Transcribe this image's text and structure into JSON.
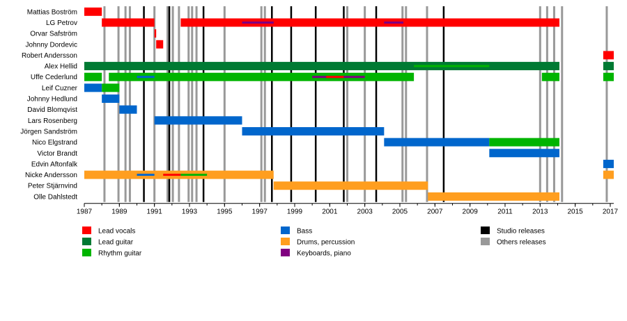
{
  "chart_data": {
    "type": "timeline",
    "x_range": [
      1987,
      2017.2
    ],
    "x_ticks": [
      1987,
      1989,
      1991,
      1993,
      1995,
      1997,
      1999,
      2001,
      2003,
      2005,
      2007,
      2009,
      2011,
      2013,
      2015,
      2017
    ],
    "x_tick_labels": [
      "1987",
      "1989",
      "1991",
      "1993",
      "1995",
      "1997",
      "1999",
      "2001",
      "2003",
      "2005",
      "2007",
      "2009",
      "2011",
      "2013",
      "2015",
      "2017"
    ],
    "colors": {
      "lead_vocals": "#ff0000",
      "lead_guitar": "#007a33",
      "rhythm_guitar": "#00b400",
      "bass": "#0066cc",
      "drums": "#ff9e1f",
      "keyboards": "#800080",
      "studio": "#000000",
      "other": "#999999"
    },
    "members": [
      "Mattias Boström",
      "LG Petrov",
      "Orvar Safström",
      "Johnny Dordevic",
      "Robert Andersson",
      "Alex Hellid",
      "Uffe Cederlund",
      "Leif Cuzner",
      "Johnny Hedlund",
      "David Blomqvist",
      "Lars Rosenberg",
      "Jörgen Sandström",
      "Nico Elgstrand",
      "Victor Brandt",
      "Edvin Aftonfalk",
      "Nicke Andersson",
      "Peter Stjärnvind",
      "Olle Dahlstedt"
    ],
    "bars": [
      {
        "member": 0,
        "role": "lead_vocals",
        "start": 1987.0,
        "end": 1988.0
      },
      {
        "member": 1,
        "role": "lead_vocals",
        "start": 1988.0,
        "end": 1991.0
      },
      {
        "member": 1,
        "role": "lead_vocals",
        "start": 1992.5,
        "end": 2014.1
      },
      {
        "member": 2,
        "role": "lead_vocals",
        "start": 1991.0,
        "end": 1991.1
      },
      {
        "member": 3,
        "role": "lead_vocals",
        "start": 1991.1,
        "end": 1991.5
      },
      {
        "member": 4,
        "role": "lead_vocals",
        "start": 2016.6,
        "end": 2017.2
      },
      {
        "member": 5,
        "role": "lead_guitar",
        "start": 1987.0,
        "end": 2014.1
      },
      {
        "member": 5,
        "role": "lead_guitar",
        "start": 2016.6,
        "end": 2017.2
      },
      {
        "member": 6,
        "role": "rhythm_guitar",
        "start": 1987.0,
        "end": 1988.0
      },
      {
        "member": 6,
        "role": "rhythm_guitar",
        "start": 1988.4,
        "end": 2005.8
      },
      {
        "member": 6,
        "role": "rhythm_guitar",
        "start": 2013.1,
        "end": 2014.1
      },
      {
        "member": 6,
        "role": "rhythm_guitar",
        "start": 2016.6,
        "end": 2017.2
      },
      {
        "member": 7,
        "role": "bass",
        "start": 1987.0,
        "end": 1988.0
      },
      {
        "member": 7,
        "role": "rhythm_guitar",
        "start": 1988.0,
        "end": 1989.0
      },
      {
        "member": 8,
        "role": "bass",
        "start": 1988.0,
        "end": 1989.0
      },
      {
        "member": 9,
        "role": "bass",
        "start": 1989.0,
        "end": 1990.0
      },
      {
        "member": 10,
        "role": "bass",
        "start": 1991.0,
        "end": 1996.0
      },
      {
        "member": 11,
        "role": "bass",
        "start": 1996.0,
        "end": 2004.1
      },
      {
        "member": 12,
        "role": "bass",
        "start": 2004.1,
        "end": 2010.1
      },
      {
        "member": 12,
        "role": "rhythm_guitar",
        "start": 2010.1,
        "end": 2014.1
      },
      {
        "member": 13,
        "role": "bass",
        "start": 2010.1,
        "end": 2014.1
      },
      {
        "member": 14,
        "role": "bass",
        "start": 2016.6,
        "end": 2017.2
      },
      {
        "member": 15,
        "role": "drums",
        "start": 1987.0,
        "end": 1997.8
      },
      {
        "member": 15,
        "role": "drums",
        "start": 2016.6,
        "end": 2017.2
      },
      {
        "member": 16,
        "role": "drums",
        "start": 1997.8,
        "end": 2006.6
      },
      {
        "member": 17,
        "role": "drums",
        "start": 2006.6,
        "end": 2014.1
      }
    ],
    "sub_bars": [
      {
        "member": 1,
        "role": "keyboards",
        "start": 1996.0,
        "end": 1997.8
      },
      {
        "member": 1,
        "role": "keyboards",
        "start": 2004.1,
        "end": 2005.2
      },
      {
        "member": 5,
        "role": "rhythm_guitar",
        "start": 2005.8,
        "end": 2010.1
      },
      {
        "member": 6,
        "role": "bass",
        "start": 1990.0,
        "end": 1991.0
      },
      {
        "member": 6,
        "role": "keyboards",
        "start": 2000.0,
        "end": 2003.0
      },
      {
        "member": 6,
        "role": "lead_vocals",
        "start": 2000.8,
        "end": 2001.8
      },
      {
        "member": 15,
        "role": "bass",
        "start": 1990.0,
        "end": 1991.0
      },
      {
        "member": 15,
        "role": "lead_vocals",
        "start": 1991.5,
        "end": 1992.5
      },
      {
        "member": 15,
        "role": "rhythm_guitar",
        "start": 1992.5,
        "end": 1994.0
      }
    ],
    "studio_releases": [
      1990.4,
      1991.85,
      1993.8,
      1997.7,
      1998.8,
      2000.2,
      2001.8,
      2003.65,
      2007.5
    ],
    "other_releases": [
      1988.15,
      1988.95,
      1989.35,
      1989.6,
      1991.0,
      1991.75,
      1992.05,
      1992.4,
      1992.95,
      1993.15,
      1993.4,
      1995.0,
      1997.1,
      1997.3,
      2002.0,
      2003.0,
      2005.15,
      2005.35,
      2006.55,
      2013.0,
      2013.4,
      2013.8,
      2014.25,
      2016.8
    ],
    "legend": [
      {
        "label": "Lead vocals",
        "role": "lead_vocals"
      },
      {
        "label": "Lead guitar",
        "role": "lead_guitar"
      },
      {
        "label": "Rhythm guitar",
        "role": "rhythm_guitar"
      },
      {
        "label": "Bass",
        "role": "bass"
      },
      {
        "label": "Drums, percussion",
        "role": "drums"
      },
      {
        "label": "Keyboards, piano",
        "role": "keyboards"
      },
      {
        "label": "Studio releases",
        "role": "studio"
      },
      {
        "label": "Others releases",
        "role": "other"
      }
    ]
  }
}
